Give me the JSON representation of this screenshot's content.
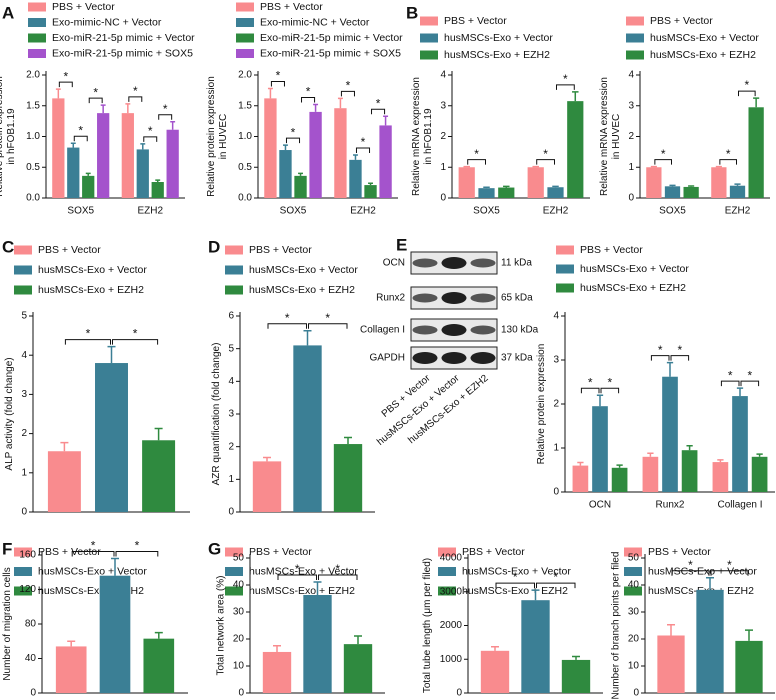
{
  "chart_data": [
    {
      "type": "bar",
      "panel": "A",
      "ylabel": [
        "Relative protein expression",
        "in hFOB1.19"
      ],
      "categories": [
        "SOX5",
        "EZH2"
      ],
      "series": [
        {
          "name": "PBS + Vector",
          "color": "#f98b8e",
          "values": [
            1.62,
            1.38
          ],
          "errors": [
            0.15,
            0.15
          ]
        },
        {
          "name": "Exo-mimic-NC + Vector",
          "color": "#3b7f95",
          "values": [
            0.82,
            0.79
          ],
          "errors": [
            0.07,
            0.09
          ]
        },
        {
          "name": "Exo-miR-21-5p mimic + Vector",
          "color": "#2f8a3f",
          "values": [
            0.36,
            0.26
          ],
          "errors": [
            0.04,
            0.03
          ]
        },
        {
          "name": "Exo-miR-21-5p mimic + SOX5",
          "color": "#a453cc",
          "values": [
            1.38,
            1.11
          ],
          "errors": [
            0.13,
            0.13
          ]
        }
      ],
      "ylim": [
        0,
        2
      ],
      "yticks": [
        {
          "value": 0,
          "label": "0.0"
        },
        0.5,
        {
          "value": 1,
          "label": "1.0"
        },
        1.5,
        {
          "value": 2,
          "label": "2.0"
        }
      ],
      "significance": [
        {
          "text": "*",
          "category": 0,
          "series": [
            0,
            1
          ]
        },
        {
          "text": "*",
          "category": 0,
          "series": [
            1,
            2
          ]
        },
        {
          "text": "*",
          "category": 0,
          "series": [
            2,
            3
          ]
        },
        {
          "text": "*",
          "category": 1,
          "series": [
            0,
            1
          ]
        },
        {
          "text": "*",
          "category": 1,
          "series": [
            1,
            2
          ]
        },
        {
          "text": "*",
          "category": 1,
          "series": [
            2,
            3
          ]
        }
      ]
    },
    {
      "type": "bar",
      "ylabel": [
        "Relative protein expression",
        "in HUVEC"
      ],
      "categories": [
        "SOX5",
        "EZH2"
      ],
      "series": [
        {
          "name": "PBS + Vector",
          "color": "#f98b8e",
          "values": [
            1.62,
            1.46
          ],
          "errors": [
            0.16,
            0.16
          ]
        },
        {
          "name": "Exo-mimic-NC + Vector",
          "color": "#3b7f95",
          "values": [
            0.78,
            0.62
          ],
          "errors": [
            0.08,
            0.08
          ]
        },
        {
          "name": "Exo-miR-21-5p mimic + Vector",
          "color": "#2f8a3f",
          "values": [
            0.36,
            0.21
          ],
          "errors": [
            0.04,
            0.03
          ]
        },
        {
          "name": "Exo-miR-21-5p mimic + SOX5",
          "color": "#a453cc",
          "values": [
            1.4,
            1.18
          ],
          "errors": [
            0.12,
            0.15
          ]
        }
      ],
      "ylim": [
        0,
        2
      ],
      "yticks": [
        {
          "value": 0,
          "label": "0.0"
        },
        0.5,
        {
          "value": 1,
          "label": "1.0"
        },
        1.5,
        {
          "value": 2,
          "label": "2.0"
        }
      ],
      "significance": [
        {
          "text": "*",
          "category": 0,
          "series": [
            0,
            1
          ]
        },
        {
          "text": "*",
          "category": 0,
          "series": [
            1,
            2
          ]
        },
        {
          "text": "*",
          "category": 0,
          "series": [
            2,
            3
          ]
        },
        {
          "text": "*",
          "category": 1,
          "series": [
            0,
            1
          ]
        },
        {
          "text": "*",
          "category": 1,
          "series": [
            1,
            2
          ]
        },
        {
          "text": "*",
          "category": 1,
          "series": [
            2,
            3
          ]
        }
      ]
    },
    {
      "type": "bar",
      "panel": "B",
      "ylabel": [
        "Relative mRNA expression",
        "in hFOB1.19"
      ],
      "categories": [
        "SOX5",
        "EZH2"
      ],
      "series": [
        {
          "name": "PBS + Vector",
          "color": "#f98b8e",
          "values": [
            1.0,
            1.0
          ],
          "errors": [
            0.02,
            0.02
          ]
        },
        {
          "name": "husMSCs-Exo + Vector",
          "color": "#3b7f95",
          "values": [
            0.32,
            0.35
          ],
          "errors": [
            0.03,
            0.03
          ]
        },
        {
          "name": "husMSCs-Exo + EZH2",
          "color": "#2f8a3f",
          "values": [
            0.34,
            3.15
          ],
          "errors": [
            0.04,
            0.3
          ]
        }
      ],
      "ylim": [
        0,
        4
      ],
      "yticks": [
        0,
        1,
        2,
        3,
        4
      ],
      "significance": [
        {
          "text": "*",
          "category": 0,
          "series": [
            0,
            1
          ]
        },
        {
          "text": "*",
          "category": 1,
          "series": [
            0,
            1
          ]
        },
        {
          "text": "*",
          "category": 1,
          "series": [
            1,
            2
          ]
        }
      ]
    },
    {
      "type": "bar",
      "ylabel": [
        "Relative mRNA expression",
        "in HUVEC"
      ],
      "categories": [
        "SOX5",
        "EZH2"
      ],
      "series": [
        {
          "name": "PBS + Vector",
          "color": "#f98b8e",
          "values": [
            1.0,
            1.0
          ],
          "errors": [
            0.02,
            0.02
          ]
        },
        {
          "name": "husMSCs-Exo + Vector",
          "color": "#3b7f95",
          "values": [
            0.38,
            0.4
          ],
          "errors": [
            0.03,
            0.05
          ]
        },
        {
          "name": "husMSCs-Exo + EZH2",
          "color": "#2f8a3f",
          "values": [
            0.36,
            2.95
          ],
          "errors": [
            0.03,
            0.3
          ]
        }
      ],
      "ylim": [
        0,
        4
      ],
      "yticks": [
        0,
        1,
        2,
        3,
        4
      ],
      "significance": [
        {
          "text": "*",
          "category": 0,
          "series": [
            0,
            1
          ]
        },
        {
          "text": "*",
          "category": 1,
          "series": [
            0,
            1
          ]
        },
        {
          "text": "*",
          "category": 1,
          "series": [
            1,
            2
          ]
        }
      ]
    },
    {
      "type": "bar",
      "panel": "C",
      "ylabel": [
        "ALP activity (fold change)"
      ],
      "categories": [
        null
      ],
      "series": [
        {
          "name": "PBS + Vector",
          "color": "#f98b8e",
          "values": [
            1.55
          ],
          "errors": [
            0.22
          ]
        },
        {
          "name": "husMSCs-Exo + Vector",
          "color": "#3b7f95",
          "values": [
            3.8
          ],
          "errors": [
            0.42
          ]
        },
        {
          "name": "husMSCs-Exo + EZH2",
          "color": "#2f8a3f",
          "values": [
            1.83
          ],
          "errors": [
            0.3
          ]
        }
      ],
      "ylim": [
        0,
        5
      ],
      "yticks": [
        0,
        1,
        2,
        3,
        4,
        5
      ],
      "significance": [
        {
          "text": "*",
          "category": 0,
          "series": [
            0,
            1
          ]
        },
        {
          "text": "*",
          "category": 0,
          "series": [
            1,
            2
          ]
        }
      ]
    },
    {
      "type": "bar",
      "panel": "D",
      "ylabel": [
        "AZR quantification (fold change)"
      ],
      "categories": [
        null
      ],
      "series": [
        {
          "name": "PBS + Vector",
          "color": "#f98b8e",
          "values": [
            1.55
          ],
          "errors": [
            0.12
          ]
        },
        {
          "name": "husMSCs-Exo + Vector",
          "color": "#3b7f95",
          "values": [
            5.1
          ],
          "errors": [
            0.45
          ]
        },
        {
          "name": "husMSCs-Exo + EZH2",
          "color": "#2f8a3f",
          "values": [
            2.08
          ],
          "errors": [
            0.2
          ]
        }
      ],
      "ylim": [
        0,
        6
      ],
      "yticks": [
        0,
        1,
        2,
        3,
        4,
        5,
        6
      ],
      "significance": [
        {
          "text": "*",
          "category": 0,
          "series": [
            0,
            1
          ]
        },
        {
          "text": "*",
          "category": 0,
          "series": [
            1,
            2
          ]
        }
      ]
    },
    {
      "type": "blot",
      "panel": "E",
      "rows": [
        {
          "name": "OCN",
          "size": "11 kDa"
        },
        {
          "name": "Runx2",
          "size": "65 kDa"
        },
        {
          "name": "Collagen I",
          "size": "130 kDa"
        },
        {
          "name": "GAPDH",
          "size": "37 kDa"
        }
      ],
      "lanes": [
        "PBS + Vector",
        "husMSCs-Exo + Vector",
        "husMSCs-Exo + EZH2"
      ]
    },
    {
      "type": "bar",
      "ylabel": [
        "Relative protein expression"
      ],
      "categories": [
        "OCN",
        "Runx2",
        "Collagen I"
      ],
      "series": [
        {
          "name": "PBS + Vector",
          "color": "#f98b8e",
          "values": [
            0.6,
            0.8,
            0.68
          ],
          "errors": [
            0.07,
            0.08,
            0.05
          ]
        },
        {
          "name": "husMSCs-Exo + Vector",
          "color": "#3b7f95",
          "values": [
            1.95,
            2.62,
            2.18
          ],
          "errors": [
            0.25,
            0.32,
            0.18
          ]
        },
        {
          "name": "husMSCs-Exo + EZH2",
          "color": "#2f8a3f",
          "values": [
            0.55,
            0.95,
            0.8
          ],
          "errors": [
            0.06,
            0.1,
            0.06
          ]
        }
      ],
      "ylim": [
        0,
        4
      ],
      "yticks": [
        0,
        1,
        2,
        3,
        4
      ],
      "significance": [
        {
          "text": "*",
          "category": 0,
          "series": [
            0,
            1
          ]
        },
        {
          "text": "*",
          "category": 0,
          "series": [
            1,
            2
          ]
        },
        {
          "text": "*",
          "category": 1,
          "series": [
            0,
            1
          ]
        },
        {
          "text": "*",
          "category": 1,
          "series": [
            1,
            2
          ]
        },
        {
          "text": "*",
          "category": 2,
          "series": [
            0,
            1
          ]
        },
        {
          "text": "*",
          "category": 2,
          "series": [
            1,
            2
          ]
        }
      ]
    },
    {
      "type": "bar",
      "panel": "F",
      "ylabel": [
        "Number of migration cells"
      ],
      "categories": [
        null
      ],
      "series": [
        {
          "name": "PBS + Vector",
          "color": "#f98b8e",
          "values": [
            54
          ],
          "errors": [
            6
          ]
        },
        {
          "name": "husMSCs-Exo + Vector",
          "color": "#3b7f95",
          "values": [
            136
          ],
          "errors": [
            20
          ]
        },
        {
          "name": "husMSCs-Exo + EZH2",
          "color": "#2f8a3f",
          "values": [
            63
          ],
          "errors": [
            7
          ]
        }
      ],
      "ylim": [
        0,
        160
      ],
      "yticks": [
        0,
        40,
        80,
        120,
        160
      ],
      "significance": [
        {
          "text": "*",
          "category": 0,
          "series": [
            0,
            1
          ]
        },
        {
          "text": "*",
          "category": 0,
          "series": [
            1,
            2
          ]
        }
      ]
    },
    {
      "type": "bar",
      "panel": "G",
      "ylabel": [
        "Total network area (%)"
      ],
      "categories": [
        null
      ],
      "series": [
        {
          "name": "PBS + Vector",
          "color": "#f98b8e",
          "values": [
            15.2
          ],
          "errors": [
            2.3
          ]
        },
        {
          "name": "husMSCs-Exo + Vector",
          "color": "#3b7f95",
          "values": [
            36.3
          ],
          "errors": [
            4.8
          ]
        },
        {
          "name": "husMSCs-Exo + EZH2",
          "color": "#2f8a3f",
          "values": [
            18.1
          ],
          "errors": [
            3
          ]
        }
      ],
      "ylim": [
        0,
        50
      ],
      "yticks": [
        0,
        10,
        20,
        30,
        40,
        50
      ],
      "significance": [
        {
          "text": "*",
          "category": 0,
          "series": [
            0,
            1
          ]
        },
        {
          "text": "*",
          "category": 0,
          "series": [
            1,
            2
          ]
        }
      ]
    },
    {
      "type": "bar",
      "ylabel": [
        "Total tube length (μm per filed)"
      ],
      "categories": [
        null
      ],
      "series": [
        {
          "name": "PBS + Vector",
          "color": "#f98b8e",
          "values": [
            1250
          ],
          "errors": [
            120
          ]
        },
        {
          "name": "husMSCs-Exo + Vector",
          "color": "#3b7f95",
          "values": [
            2750
          ],
          "errors": [
            300
          ]
        },
        {
          "name": "husMSCs-Exo + EZH2",
          "color": "#2f8a3f",
          "values": [
            980
          ],
          "errors": [
            100
          ]
        }
      ],
      "ylim": [
        0,
        4000
      ],
      "yticks": [
        0,
        1000,
        2000,
        3000,
        4000
      ],
      "significance": [
        {
          "text": "*",
          "category": 0,
          "series": [
            0,
            1
          ]
        },
        {
          "text": "*",
          "category": 0,
          "series": [
            1,
            2
          ]
        }
      ]
    },
    {
      "type": "bar",
      "ylabel": [
        "Number of branch points per filed"
      ],
      "categories": [
        null
      ],
      "series": [
        {
          "name": "PBS + Vector",
          "color": "#f98b8e",
          "values": [
            21.3
          ],
          "errors": [
            4
          ]
        },
        {
          "name": "husMSCs-Exo + Vector",
          "color": "#3b7f95",
          "values": [
            38.2
          ],
          "errors": [
            4.5
          ]
        },
        {
          "name": "husMSCs-Exo + EZH2",
          "color": "#2f8a3f",
          "values": [
            19.3
          ],
          "errors": [
            4
          ]
        }
      ],
      "ylim": [
        0,
        50
      ],
      "yticks": [
        0,
        10,
        20,
        30,
        40,
        50
      ],
      "significance": [
        {
          "text": "*",
          "category": 0,
          "series": [
            0,
            1
          ]
        },
        {
          "text": "*",
          "category": 0,
          "series": [
            1,
            2
          ]
        }
      ]
    }
  ]
}
